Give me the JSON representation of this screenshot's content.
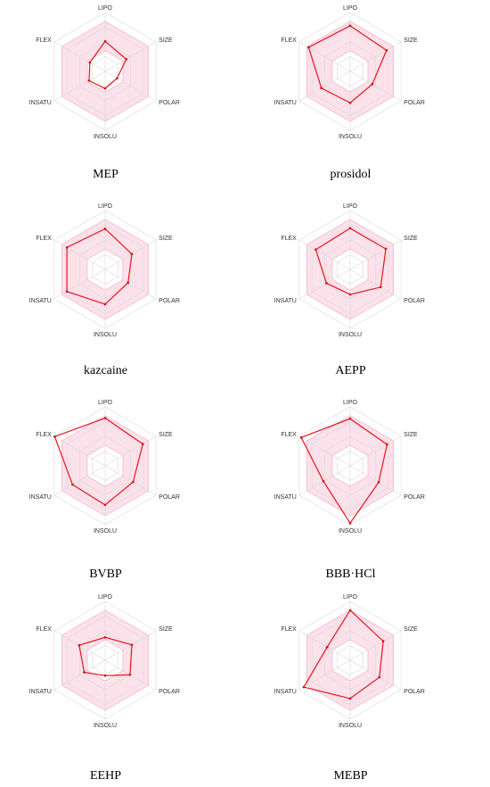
{
  "chart_data": [
    {
      "type": "radar",
      "title": "MEP",
      "axes": [
        "LIPO",
        "SIZE",
        "POLAR",
        "INSOLU",
        "INSATU",
        "FLEX"
      ],
      "range": [
        -1,
        1
      ],
      "optimal_range": [
        -0.3,
        0.7
      ],
      "series": [
        {
          "values": [
            0.02,
            -0.17,
            -0.53,
            -0.42,
            -0.37,
            -0.4
          ]
        }
      ]
    },
    {
      "type": "radar",
      "title": "prosidol",
      "axes": [
        "LIPO",
        "SIZE",
        "POLAR",
        "INSOLU",
        "INSATU",
        "FLEX"
      ],
      "range": [
        -1,
        1
      ],
      "optimal_range": [
        -0.3,
        0.7
      ],
      "series": [
        {
          "values": [
            0.55,
            0.43,
            -0.13,
            0.07,
            0.13,
            0.63
          ]
        }
      ]
    },
    {
      "type": "radar",
      "title": "kazcaine",
      "axes": [
        "LIPO",
        "SIZE",
        "POLAR",
        "INSOLU",
        "INSATU",
        "FLEX"
      ],
      "range": [
        -1,
        1
      ],
      "optimal_range": [
        -0.3,
        0.7
      ],
      "series": [
        {
          "values": [
            0.38,
            0.05,
            -0.1,
            0.18,
            0.5,
            0.5
          ]
        }
      ]
    },
    {
      "type": "radar",
      "title": "AEPP",
      "axes": [
        "LIPO",
        "SIZE",
        "POLAR",
        "INSOLU",
        "INSATU",
        "FLEX"
      ],
      "range": [
        -1,
        1
      ],
      "optimal_range": [
        -0.3,
        0.7
      ],
      "series": [
        {
          "values": [
            0.4,
            0.4,
            0.2,
            -0.15,
            -0.07,
            0.35
          ]
        }
      ]
    },
    {
      "type": "radar",
      "title": "BVBP",
      "axes": [
        "LIPO",
        "SIZE",
        "POLAR",
        "INSOLU",
        "INSATU",
        "FLEX"
      ],
      "range": [
        -1,
        1
      ],
      "optimal_range": [
        -0.3,
        0.7
      ],
      "series": [
        {
          "values": [
            0.62,
            0.48,
            0.1,
            0.33,
            0.28,
            0.98
          ]
        }
      ]
    },
    {
      "type": "radar",
      "title": "BBB·HCl",
      "axes": [
        "LIPO",
        "SIZE",
        "POLAR",
        "INSOLU",
        "INSATU",
        "FLEX"
      ],
      "range": [
        -1,
        1
      ],
      "optimal_range": [
        -0.3,
        0.7
      ],
      "series": [
        {
          "values": [
            0.6,
            0.45,
            0.12,
            0.95,
            0.05,
            0.92
          ]
        }
      ]
    },
    {
      "type": "radar",
      "title": "EEHP",
      "axes": [
        "LIPO",
        "SIZE",
        "POLAR",
        "INSOLU",
        "INSATU",
        "FLEX"
      ],
      "range": [
        -1,
        1
      ],
      "optimal_range": [
        -0.3,
        0.7
      ],
      "series": [
        {
          "values": [
            -0.22,
            0.05,
            -0.02,
            -0.48,
            -0.18,
            0.02
          ]
        }
      ]
    },
    {
      "type": "radar",
      "title": "MEBP",
      "axes": [
        "LIPO",
        "SIZE",
        "POLAR",
        "INSOLU",
        "INSATU",
        "FLEX"
      ],
      "range": [
        -1,
        1
      ],
      "optimal_range": [
        -0.3,
        0.7
      ],
      "series": [
        {
          "values": [
            0.7,
            0.3,
            0.15,
            0.3,
            0.82,
            -0.1
          ]
        }
      ]
    }
  ]
}
